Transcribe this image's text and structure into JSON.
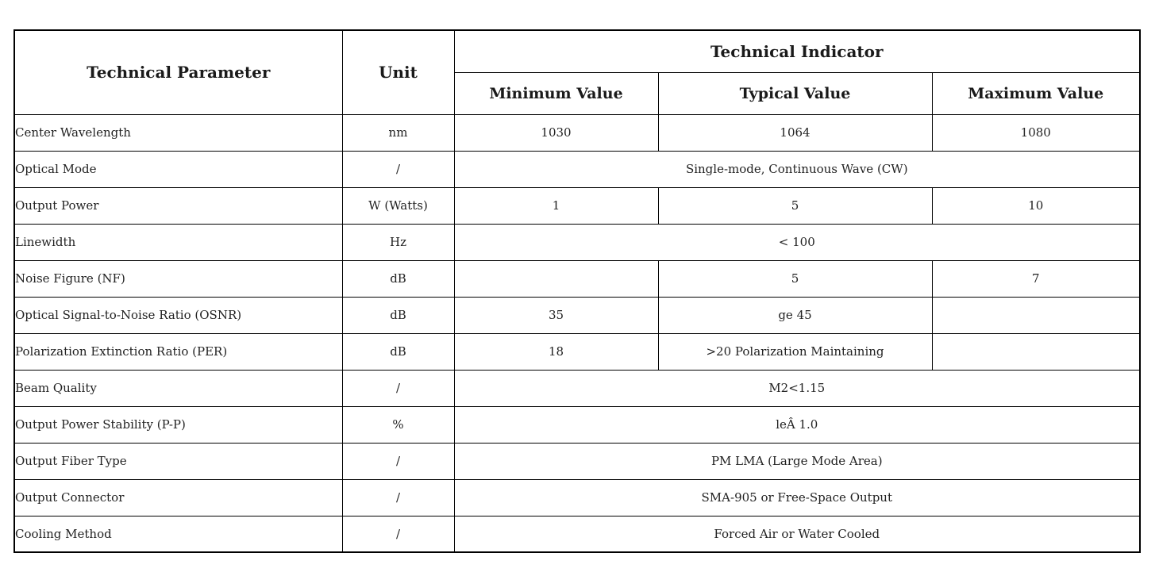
{
  "table": {
    "header": {
      "param": "Technical Parameter",
      "unit": "Unit",
      "indicator": "Technical Indicator",
      "min": "Minimum Value",
      "typical": "Typical Value",
      "max": "Maximum Value"
    },
    "rows": [
      {
        "param": "Center Wavelength",
        "unit": "nm",
        "min": "1030",
        "typical": "1064",
        "max": "1080"
      },
      {
        "param": "Optical Mode",
        "unit": "/",
        "span": "Single-mode, Continuous Wave (CW)"
      },
      {
        "param": "Output Power",
        "unit": "W (Watts)",
        "min": "1",
        "typical": "5",
        "max": "10"
      },
      {
        "param": "Linewidth",
        "unit": "Hz",
        "span": "< 100"
      },
      {
        "param": "Noise Figure (NF)",
        "unit": "dB",
        "min": "",
        "typical": "5",
        "max": "7"
      },
      {
        "param": "Optical Signal-to-Noise Ratio (OSNR)",
        "unit": "dB",
        "min": "35",
        "typical": "ge 45",
        "max": ""
      },
      {
        "param": "Polarization Extinction Ratio (PER)",
        "unit": "dB",
        "min": "18",
        "typical": ">20 Polarization Maintaining",
        "max": ""
      },
      {
        "param": "Beam Quality",
        "unit": "/",
        "span": "M2<1.15"
      },
      {
        "param": "Output Power Stability (P-P)",
        "unit": "%",
        "span": "leÂ 1.0"
      },
      {
        "param": "Output Fiber Type",
        "unit": "/",
        "span": "PM LMA (Large Mode Area)"
      },
      {
        "param": "Output Connector",
        "unit": "/",
        "span": "SMA-905 or Free-Space Output"
      },
      {
        "param": "Cooling Method",
        "unit": "/",
        "span": "Forced Air or Water Cooled"
      }
    ],
    "colors": {
      "border": "#000000",
      "text": "#222222",
      "header_text": "#1a1a1a",
      "background": "#ffffff"
    }
  }
}
